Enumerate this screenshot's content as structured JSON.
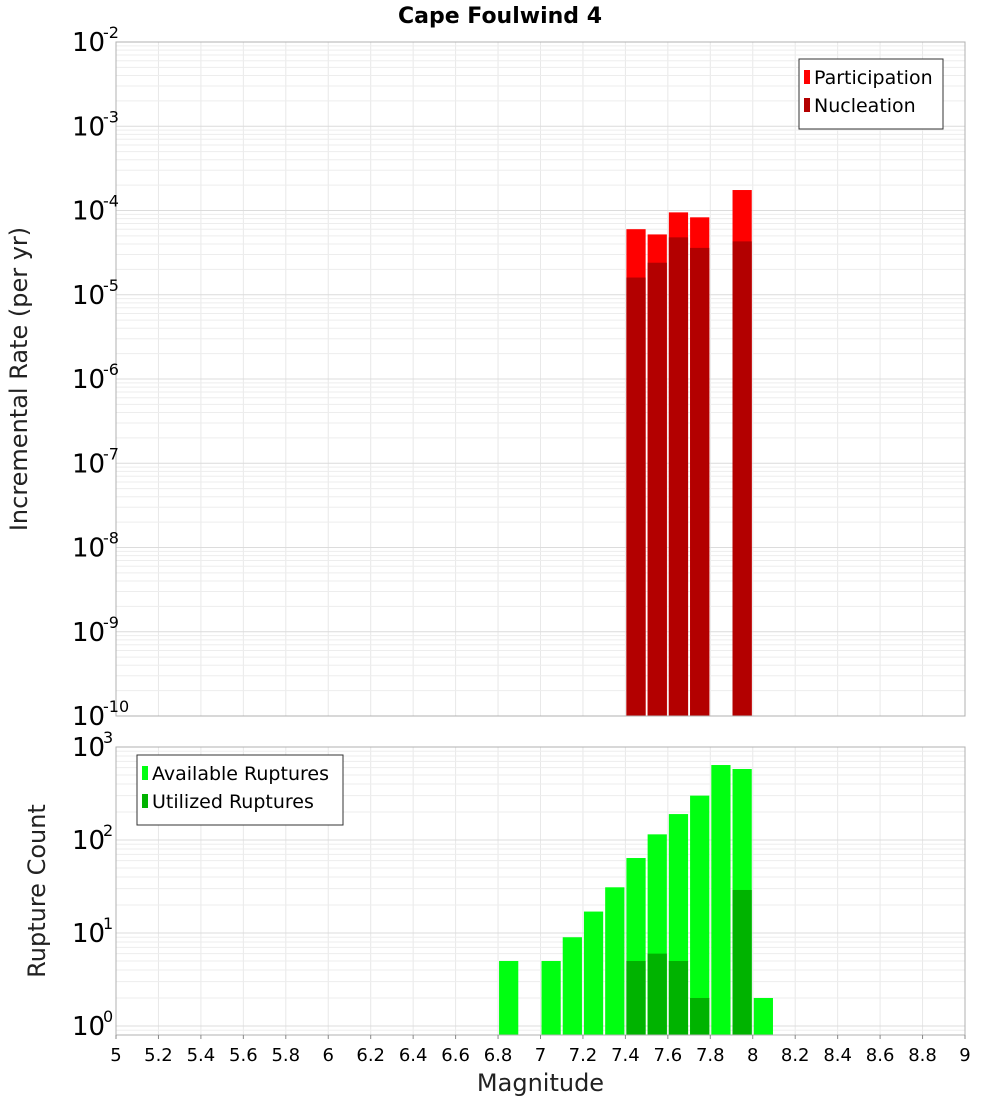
{
  "chart_data": [
    {
      "type": "bar",
      "title": "Cape Foulwind 4",
      "xlabel": "",
      "ylabel": "Incremental Rate (per yr)",
      "yscale": "log",
      "xlim": [
        5,
        9
      ],
      "ylim": [
        1e-10,
        0.01
      ],
      "yticks": [
        {
          "base": "10",
          "exp": "-2",
          "value": 0.01
        },
        {
          "base": "10",
          "exp": "-3",
          "value": 0.001
        },
        {
          "base": "10",
          "exp": "-4",
          "value": 0.0001
        },
        {
          "base": "10",
          "exp": "-5",
          "value": 1e-05
        },
        {
          "base": "10",
          "exp": "-6",
          "value": 1e-06
        },
        {
          "base": "10",
          "exp": "-7",
          "value": 1e-07
        },
        {
          "base": "10",
          "exp": "-8",
          "value": 1e-08
        },
        {
          "base": "10",
          "exp": "-9",
          "value": 1e-09
        },
        {
          "base": "10",
          "exp": "-10",
          "value": 1e-10
        }
      ],
      "grid": true,
      "legend_position": "top-right",
      "bar_width": 0.1,
      "series": [
        {
          "name": "Participation",
          "color": "#ff0000",
          "x": [
            7.45,
            7.55,
            7.65,
            7.75,
            7.95
          ],
          "values": [
            6e-05,
            5.2e-05,
            9.5e-05,
            8.3e-05,
            0.000175
          ]
        },
        {
          "name": "Nucleation",
          "color": "#b30000",
          "x": [
            7.45,
            7.55,
            7.65,
            7.75,
            7.95
          ],
          "values": [
            1.6e-05,
            2.4e-05,
            4.8e-05,
            3.6e-05,
            4.3e-05
          ]
        }
      ]
    },
    {
      "type": "bar",
      "title": "",
      "xlabel": "Magnitude",
      "ylabel": "Rupture Count",
      "yscale": "log",
      "xlim": [
        5,
        9
      ],
      "ylim": [
        0.8,
        1000
      ],
      "yticks": [
        {
          "base": "10",
          "exp": "3",
          "value": 1000
        },
        {
          "base": "10",
          "exp": "2",
          "value": 100
        },
        {
          "base": "10",
          "exp": "1",
          "value": 10
        },
        {
          "base": "10",
          "exp": "0",
          "value": 1
        }
      ],
      "xticks": [
        "5",
        "5.2",
        "5.4",
        "5.6",
        "5.8",
        "6",
        "6.2",
        "6.4",
        "6.6",
        "6.8",
        "7",
        "7.2",
        "7.4",
        "7.6",
        "7.8",
        "8",
        "8.2",
        "8.4",
        "8.6",
        "8.8",
        "9"
      ],
      "grid": true,
      "legend_position": "top-left",
      "bar_width": 0.1,
      "series": [
        {
          "name": "Available Ruptures",
          "color": "#00ff11",
          "x": [
            6.85,
            7.05,
            7.15,
            7.25,
            7.35,
            7.45,
            7.55,
            7.65,
            7.75,
            7.85,
            7.95,
            8.05
          ],
          "values": [
            5,
            5,
            9,
            17,
            31,
            64,
            115,
            190,
            300,
            640,
            580,
            2
          ]
        },
        {
          "name": "Utilized Ruptures",
          "color": "#00b300",
          "x": [
            7.45,
            7.55,
            7.65,
            7.75,
            7.95
          ],
          "values": [
            5,
            6,
            5,
            2,
            29
          ]
        }
      ]
    }
  ]
}
